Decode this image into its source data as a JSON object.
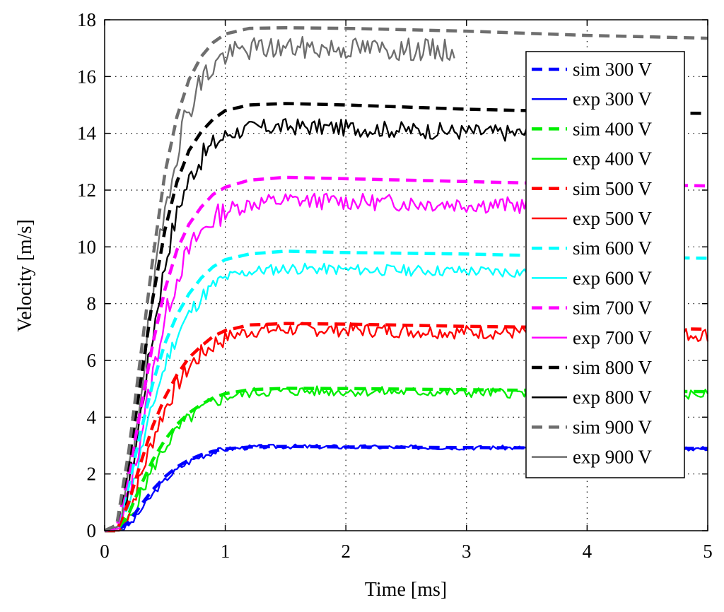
{
  "chart_data": {
    "type": "line",
    "title": "",
    "xlabel": "Time [ms]",
    "ylabel": "Velocity [m/s]",
    "xlim": [
      0,
      5
    ],
    "ylim": [
      0,
      18
    ],
    "xticks": [
      0,
      1,
      2,
      3,
      4,
      5
    ],
    "yticks": [
      0,
      2,
      4,
      6,
      8,
      10,
      12,
      14,
      16,
      18
    ],
    "xtick_labels": [
      "0",
      "1",
      "2",
      "3",
      "4",
      "5"
    ],
    "ytick_labels": [
      "0",
      "2",
      "4",
      "6",
      "8",
      "10",
      "12",
      "14",
      "16",
      "18"
    ],
    "grid": true,
    "legend_position": "right",
    "series": [
      {
        "name": "sim 300 V",
        "style": "dashed",
        "color": "#0000ff",
        "final": 2.9,
        "x_end": 5.0,
        "tau": 0.22,
        "points": [
          [
            0,
            0
          ],
          [
            0.1,
            0
          ],
          [
            0.2,
            0.3
          ],
          [
            0.3,
            0.9
          ],
          [
            0.4,
            1.45
          ],
          [
            0.5,
            1.9
          ],
          [
            0.6,
            2.25
          ],
          [
            0.7,
            2.5
          ],
          [
            0.8,
            2.68
          ],
          [
            0.9,
            2.8
          ],
          [
            1.0,
            2.88
          ],
          [
            1.2,
            2.95
          ],
          [
            1.5,
            2.97
          ],
          [
            2.0,
            2.95
          ],
          [
            3.0,
            2.93
          ],
          [
            4.0,
            2.91
          ],
          [
            5.0,
            2.9
          ]
        ]
      },
      {
        "name": "exp 300 V",
        "style": "solid",
        "color": "#0000ff",
        "final": 2.9,
        "x_end": 5.0,
        "tau": 0.22,
        "noise": 0.08,
        "seed": 3
      },
      {
        "name": "sim 400 V",
        "style": "dashed",
        "color": "#00ee00",
        "final": 5.0,
        "x_end": 5.0,
        "tau": 0.22,
        "points": [
          [
            0,
            0
          ],
          [
            0.1,
            0
          ],
          [
            0.2,
            0.6
          ],
          [
            0.3,
            1.6
          ],
          [
            0.4,
            2.5
          ],
          [
            0.5,
            3.2
          ],
          [
            0.6,
            3.75
          ],
          [
            0.7,
            4.15
          ],
          [
            0.8,
            4.45
          ],
          [
            0.9,
            4.68
          ],
          [
            1.0,
            4.83
          ],
          [
            1.2,
            4.97
          ],
          [
            1.5,
            5.02
          ],
          [
            2.0,
            5.01
          ],
          [
            3.0,
            4.97
          ],
          [
            4.0,
            4.93
          ],
          [
            5.0,
            4.9
          ]
        ]
      },
      {
        "name": "exp 400 V",
        "style": "solid",
        "color": "#00ee00",
        "final": 4.9,
        "x_end": 5.0,
        "tau": 0.22,
        "noise": 0.18,
        "seed": 5
      },
      {
        "name": "sim 500 V",
        "style": "dashed",
        "color": "#ff0000",
        "final": 7.2,
        "x_end": 5.0,
        "tau": 0.22,
        "points": [
          [
            0,
            0
          ],
          [
            0.1,
            0
          ],
          [
            0.2,
            1.0
          ],
          [
            0.3,
            2.4
          ],
          [
            0.4,
            3.7
          ],
          [
            0.5,
            4.7
          ],
          [
            0.6,
            5.5
          ],
          [
            0.7,
            6.1
          ],
          [
            0.8,
            6.5
          ],
          [
            0.9,
            6.85
          ],
          [
            1.0,
            7.05
          ],
          [
            1.2,
            7.25
          ],
          [
            1.5,
            7.3
          ],
          [
            2.0,
            7.28
          ],
          [
            3.0,
            7.2
          ],
          [
            4.0,
            7.15
          ],
          [
            5.0,
            7.1
          ]
        ]
      },
      {
        "name": "exp 500 V",
        "style": "solid",
        "color": "#ff0000",
        "final": 7.0,
        "x_end": 5.0,
        "tau": 0.22,
        "noise": 0.25,
        "seed": 7
      },
      {
        "name": "sim 600 V",
        "style": "dashed",
        "color": "#00ffff",
        "final": 9.7,
        "x_end": 5.0,
        "tau": 0.22,
        "points": [
          [
            0,
            0
          ],
          [
            0.1,
            0.1
          ],
          [
            0.2,
            1.6
          ],
          [
            0.3,
            3.5
          ],
          [
            0.4,
            5.2
          ],
          [
            0.5,
            6.6
          ],
          [
            0.6,
            7.6
          ],
          [
            0.7,
            8.35
          ],
          [
            0.8,
            8.9
          ],
          [
            0.9,
            9.3
          ],
          [
            1.0,
            9.55
          ],
          [
            1.2,
            9.75
          ],
          [
            1.5,
            9.85
          ],
          [
            2.0,
            9.8
          ],
          [
            3.0,
            9.75
          ],
          [
            4.0,
            9.65
          ],
          [
            5.0,
            9.6
          ]
        ]
      },
      {
        "name": "exp 600 V",
        "style": "solid",
        "color": "#00ffff",
        "final": 9.1,
        "x_end": 3.5,
        "tau": 0.22,
        "noise": 0.2,
        "seed": 11
      },
      {
        "name": "sim 700 V",
        "style": "dashed",
        "color": "#ff00ff",
        "final": 12.3,
        "x_end": 5.0,
        "tau": 0.22,
        "points": [
          [
            0,
            0
          ],
          [
            0.1,
            0.1
          ],
          [
            0.2,
            2.0
          ],
          [
            0.3,
            4.3
          ],
          [
            0.4,
            6.6
          ],
          [
            0.5,
            8.5
          ],
          [
            0.6,
            9.9
          ],
          [
            0.7,
            10.8
          ],
          [
            0.8,
            11.4
          ],
          [
            0.9,
            11.85
          ],
          [
            1.0,
            12.1
          ],
          [
            1.2,
            12.35
          ],
          [
            1.5,
            12.45
          ],
          [
            2.0,
            12.4
          ],
          [
            3.0,
            12.3
          ],
          [
            4.0,
            12.2
          ],
          [
            5.0,
            12.15
          ]
        ]
      },
      {
        "name": "exp 700 V",
        "style": "solid",
        "color": "#ff00ff",
        "final": 11.5,
        "x_end": 3.5,
        "tau": 0.22,
        "noise": 0.3,
        "seed": 13
      },
      {
        "name": "sim 800 V",
        "style": "dashed",
        "color": "#000000",
        "final": 14.8,
        "x_end": 5.0,
        "tau": 0.22,
        "points": [
          [
            0,
            0
          ],
          [
            0.1,
            0.2
          ],
          [
            0.2,
            2.4
          ],
          [
            0.3,
            5.3
          ],
          [
            0.4,
            8.2
          ],
          [
            0.5,
            10.6
          ],
          [
            0.6,
            12.3
          ],
          [
            0.7,
            13.4
          ],
          [
            0.8,
            14.05
          ],
          [
            0.9,
            14.5
          ],
          [
            1.0,
            14.8
          ],
          [
            1.2,
            15.0
          ],
          [
            1.5,
            15.05
          ],
          [
            2.0,
            15.0
          ],
          [
            3.0,
            14.85
          ],
          [
            4.0,
            14.75
          ],
          [
            5.0,
            14.7
          ]
        ]
      },
      {
        "name": "exp 800 V",
        "style": "solid",
        "color": "#000000",
        "final": 14.0,
        "x_end": 3.5,
        "tau": 0.22,
        "noise": 0.3,
        "seed": 17
      },
      {
        "name": "sim 900 V",
        "style": "dashed",
        "color": "#6e6e6e",
        "final": 17.5,
        "x_end": 5.0,
        "tau": 0.22,
        "points": [
          [
            0,
            0
          ],
          [
            0.1,
            0.2
          ],
          [
            0.2,
            2.8
          ],
          [
            0.3,
            6.2
          ],
          [
            0.4,
            9.6
          ],
          [
            0.5,
            12.6
          ],
          [
            0.6,
            14.6
          ],
          [
            0.7,
            15.9
          ],
          [
            0.8,
            16.7
          ],
          [
            0.9,
            17.2
          ],
          [
            1.0,
            17.5
          ],
          [
            1.2,
            17.7
          ],
          [
            1.5,
            17.72
          ],
          [
            2.0,
            17.7
          ],
          [
            3.0,
            17.6
          ],
          [
            4.0,
            17.45
          ],
          [
            5.0,
            17.35
          ]
        ]
      },
      {
        "name": "exp 900 V",
        "style": "solid",
        "color": "#6e6e6e",
        "final": 16.8,
        "x_end": 2.9,
        "tau": 0.22,
        "noise": 0.4,
        "seed": 19
      }
    ]
  }
}
